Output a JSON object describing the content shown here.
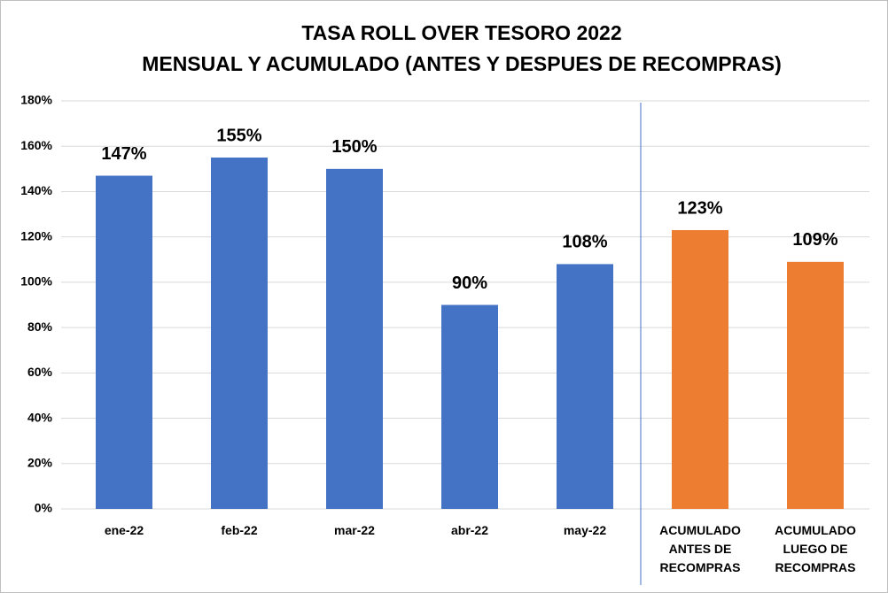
{
  "chart_data": {
    "type": "bar",
    "title": "TASA ROLL OVER TESORO 2022",
    "subtitle": "MENSUAL Y ACUMULADO (ANTES Y DESPUES DE RECOMPRAS)",
    "categories": [
      "ene-22",
      "feb-22",
      "mar-22",
      "abr-22",
      "may-22",
      "ACUMULADO ANTES DE RECOMPRAS",
      "ACUMULADO LUEGO DE RECOMPRAS"
    ],
    "values": [
      147,
      155,
      150,
      90,
      108,
      123,
      109
    ],
    "value_labels": [
      "147%",
      "155%",
      "150%",
      "90%",
      "108%",
      "123%",
      "109%"
    ],
    "colors": [
      "#4472c4",
      "#4472c4",
      "#4472c4",
      "#4472c4",
      "#4472c4",
      "#ed7d31",
      "#ed7d31"
    ],
    "ylim": [
      0,
      180
    ],
    "yticks": [
      {
        "value": 0,
        "label": "0%"
      },
      {
        "value": 20,
        "label": "20%"
      },
      {
        "value": 40,
        "label": "40%"
      },
      {
        "value": 60,
        "label": "60%"
      },
      {
        "value": 80,
        "label": "80%"
      },
      {
        "value": 100,
        "label": "100%"
      },
      {
        "value": 120,
        "label": "120%"
      },
      {
        "value": 140,
        "label": "140%"
      },
      {
        "value": 160,
        "label": "160%"
      },
      {
        "value": 180,
        "label": "180%"
      }
    ],
    "grid": true
  }
}
